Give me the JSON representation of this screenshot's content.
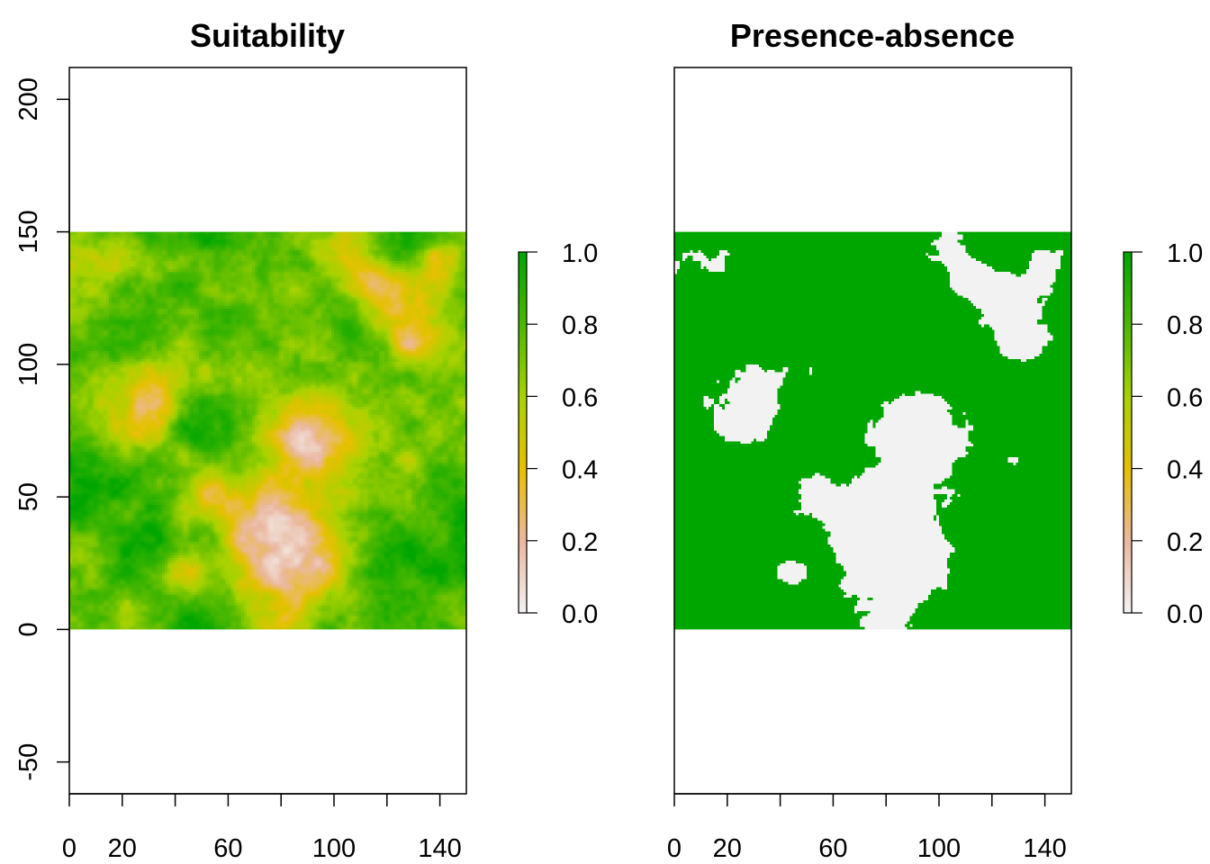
{
  "chart_data": [
    {
      "type": "heatmap",
      "title": "Suitability",
      "xlabel": "",
      "ylabel": "",
      "xlim": [
        0,
        150
      ],
      "ylim": [
        -62,
        212
      ],
      "x_ticks": [
        0,
        20,
        40,
        60,
        80,
        100,
        120,
        140
      ],
      "x_tick_labels": [
        "0",
        "20",
        "",
        "60",
        "",
        "100",
        "",
        "140"
      ],
      "y_ticks": [
        -50,
        0,
        50,
        100,
        150,
        200
      ],
      "y_tick_labels": [
        "-50",
        "0",
        "50",
        "100",
        "150",
        "200"
      ],
      "raster": {
        "x_range": [
          0,
          150
        ],
        "y_range": [
          0,
          150
        ],
        "cells": 150,
        "value_range": [
          0,
          1
        ],
        "description_values": "continuous suitability 0-1; mostly high (green), low patches near (80,30), (30,90), (90,70), (130,110), (110,135)"
      },
      "colorbar": {
        "ticks": [
          0.0,
          0.2,
          0.4,
          0.6,
          0.8,
          1.0
        ],
        "tick_labels": [
          "0.0",
          "0.2",
          "0.4",
          "0.6",
          "0.8",
          "1.0"
        ],
        "colors": [
          "#f2f2f2",
          "#ebb8a0",
          "#e6c000",
          "#a8d200",
          "#4cb800",
          "#00a600"
        ]
      },
      "grid": false
    },
    {
      "type": "heatmap",
      "title": "Presence-absence",
      "xlabel": "",
      "ylabel": "",
      "xlim": [
        0,
        150
      ],
      "ylim": [
        -62,
        212
      ],
      "x_ticks": [
        0,
        20,
        40,
        60,
        80,
        100,
        120,
        140
      ],
      "x_tick_labels": [
        "0",
        "20",
        "",
        "60",
        "",
        "100",
        "",
        "140"
      ],
      "raster": {
        "x_range": [
          0,
          150
        ],
        "y_range": [
          0,
          150
        ],
        "cells": 150,
        "value_range": [
          0,
          1
        ],
        "binary": true,
        "description_values": "binary 0/1 presence map derived from suitability"
      },
      "colorbar": {
        "ticks": [
          0.0,
          0.2,
          0.4,
          0.6,
          0.8,
          1.0
        ],
        "tick_labels": [
          "0.0",
          "0.2",
          "0.4",
          "0.6",
          "0.8",
          "1.0"
        ],
        "colors": [
          "#f2f2f2",
          "#ebb8a0",
          "#e6c000",
          "#a8d200",
          "#4cb800",
          "#00a600"
        ]
      },
      "grid": false
    }
  ]
}
